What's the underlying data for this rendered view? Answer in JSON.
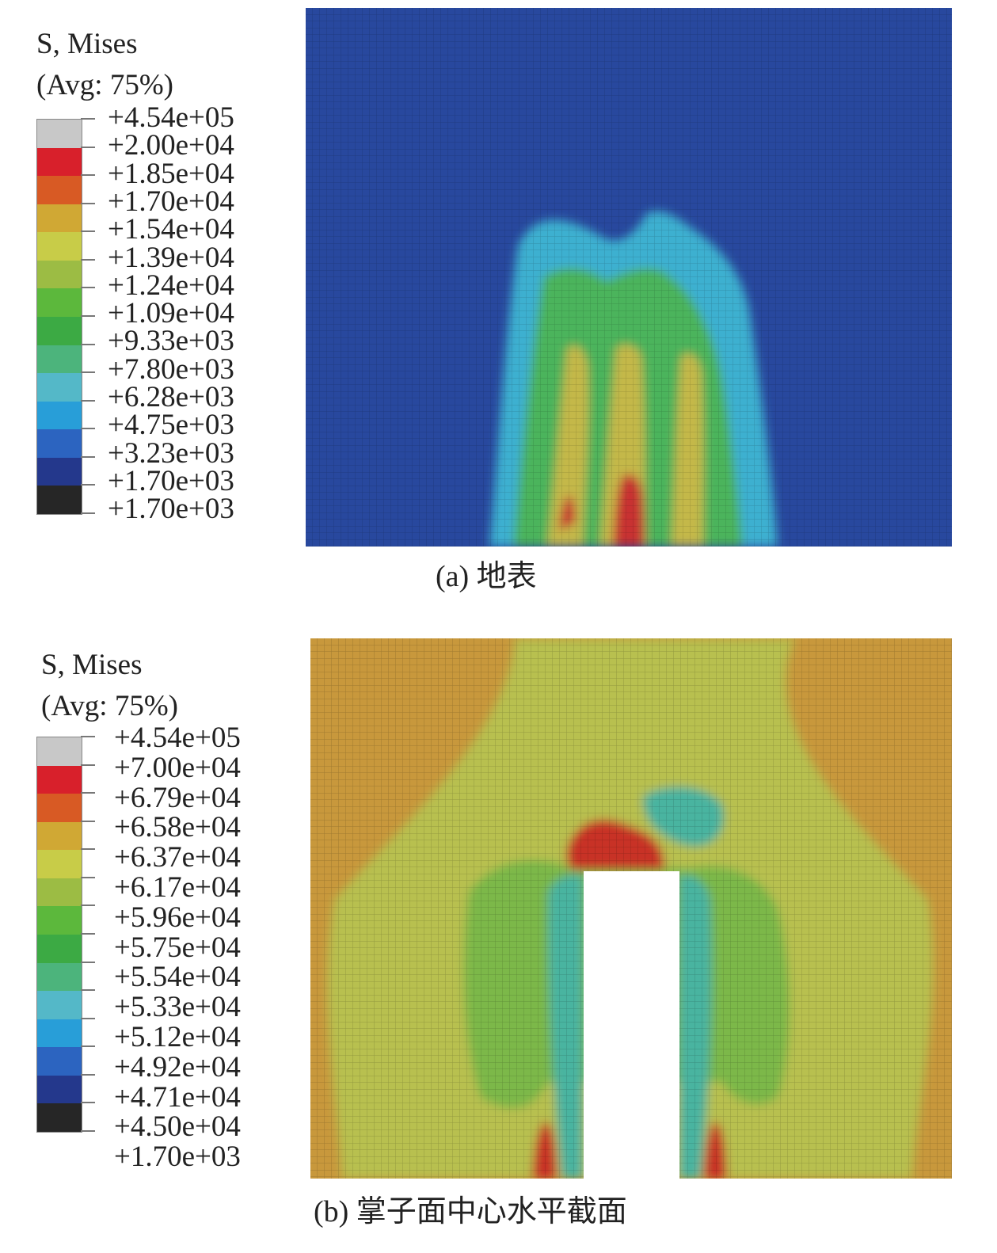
{
  "panel_a": {
    "legend_title": "S, Mises",
    "legend_subtitle": "(Avg: 75%)",
    "legend_labels": [
      "+4.54e+05",
      "+2.00e+04",
      "+1.85e+04",
      "+1.70e+04",
      "+1.54e+04",
      "+1.39e+04",
      "+1.24e+04",
      "+1.09e+04",
      "+9.33e+03",
      "+7.80e+03",
      "+6.28e+03",
      "+4.75e+03",
      "+3.23e+03",
      "+1.70e+03",
      "+1.70e+03"
    ],
    "caption": "(a) 地表"
  },
  "panel_b": {
    "legend_title": "S, Mises",
    "legend_subtitle": "(Avg: 75%)",
    "legend_labels": [
      "+4.54e+05",
      "+7.00e+04",
      "+6.79e+04",
      "+6.58e+04",
      "+6.37e+04",
      "+6.17e+04",
      "+5.96e+04",
      "+5.75e+04",
      "+5.54e+04",
      "+5.33e+04",
      "+5.12e+04",
      "+4.92e+04",
      "+4.71e+04",
      "+4.50e+04",
      "+1.70e+03"
    ],
    "caption": "(b) 掌子面中心水平截面"
  },
  "legend_colors": [
    "#c8c8c8",
    "#d8202b",
    "#d85a24",
    "#d0a834",
    "#c8cc48",
    "#9cbc44",
    "#5cb83c",
    "#3caa44",
    "#4cb47c",
    "#54b8c8",
    "#289ed8",
    "#2c64c0",
    "#24388c",
    "#262626"
  ],
  "colors": {
    "field_blue": "#28489e",
    "mesh_line": "#1f3a86",
    "surface_cyan": "#3cb0d0",
    "surface_green": "#4cb45c",
    "surface_yellow": "#c4b848",
    "surface_red": "#c83030",
    "section_orange": "#c8983c",
    "section_yellow": "#b8c050",
    "section_green": "#7cb848",
    "section_teal": "#48b4a0",
    "section_red": "#c83028",
    "cavity": "#ffffff"
  }
}
